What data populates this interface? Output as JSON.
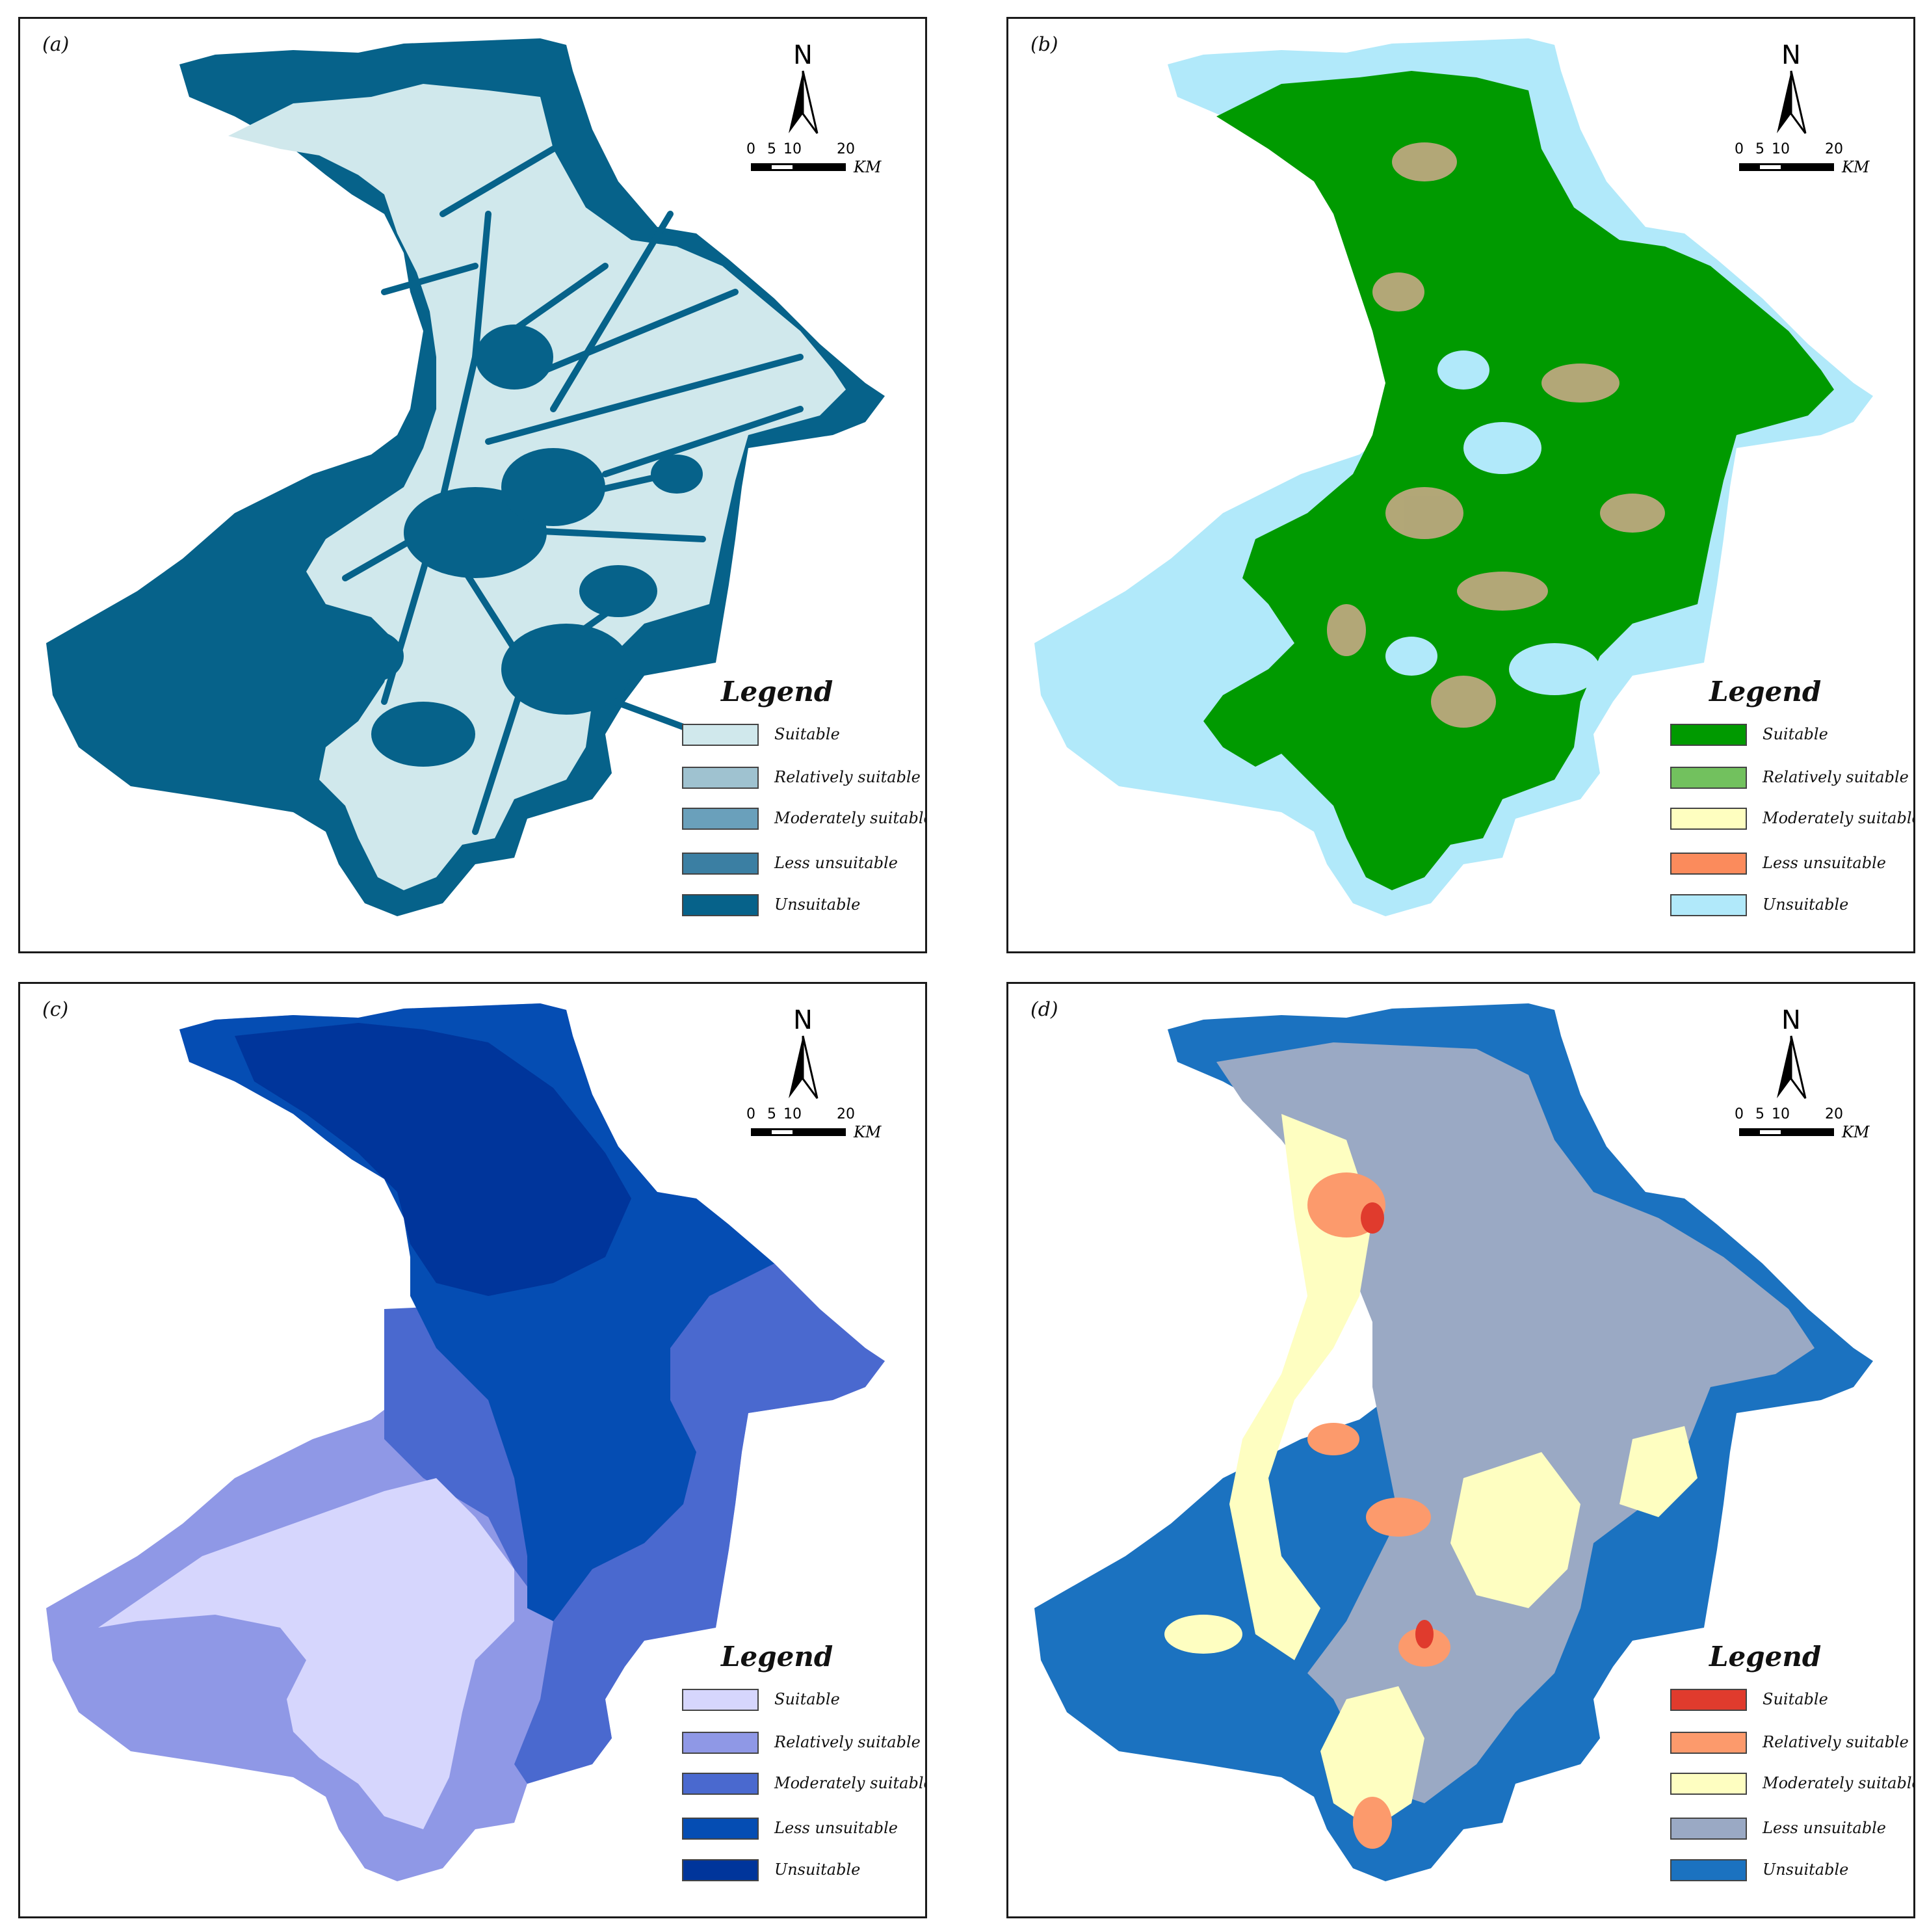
{
  "north_label": "N",
  "scale": {
    "ticks": [
      "0",
      "5",
      "10",
      "20"
    ],
    "unit": "KM"
  },
  "legend_title": "Legend",
  "panels": [
    {
      "label": "(a)",
      "legend": [
        {
          "label": "Suitable",
          "color": "#d0e8ec"
        },
        {
          "label": "Relatively suitable",
          "color": "#9fc2d0"
        },
        {
          "label": "Moderately suitable",
          "color": "#6aa0bb"
        },
        {
          "label": "Less unsuitable",
          "color": "#3b7fa3"
        },
        {
          "label": "Unsuitable",
          "color": "#06628a"
        }
      ]
    },
    {
      "label": "(b)",
      "legend": [
        {
          "label": "Suitable",
          "color": "#009a00"
        },
        {
          "label": "Relatively suitable",
          "color": "#72c15e"
        },
        {
          "label": "Moderately suitable",
          "color": "#fefec0"
        },
        {
          "label": "Less unsuitable",
          "color": "#fb8b5c"
        },
        {
          "label": "Unsuitable",
          "color": "#b1e9fa"
        }
      ]
    },
    {
      "label": "(c)",
      "legend": [
        {
          "label": "Suitable",
          "color": "#d6d6fd"
        },
        {
          "label": "Relatively suitable",
          "color": "#8f98e6"
        },
        {
          "label": "Moderately suitable",
          "color": "#4a69cf"
        },
        {
          "label": "Less unsuitable",
          "color": "#054db3"
        },
        {
          "label": "Unsuitable",
          "color": "#00359b"
        }
      ]
    },
    {
      "label": "(d)",
      "legend": [
        {
          "label": "Suitable",
          "color": "#e03b2d"
        },
        {
          "label": "Relatively suitable",
          "color": "#fc9a6c"
        },
        {
          "label": "Moderately suitable",
          "color": "#fefec1"
        },
        {
          "label": "Less unsuitable",
          "color": "#9aa9c4"
        },
        {
          "label": "Unsuitable",
          "color": "#1b72c0"
        }
      ]
    }
  ]
}
